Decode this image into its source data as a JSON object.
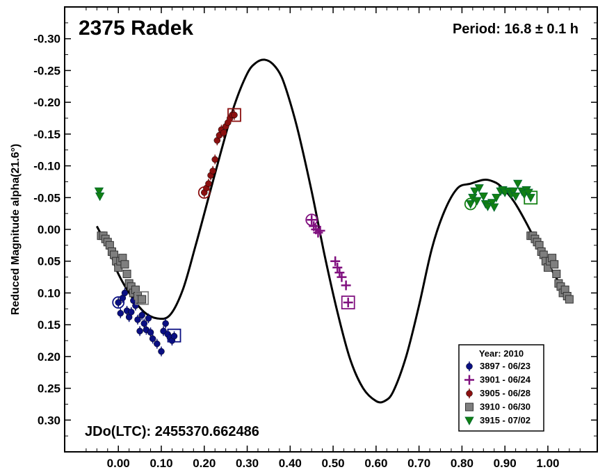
{
  "chart_data": {
    "type": "scatter",
    "title": "2375 Radek",
    "period_label": "Period: 16.8 ± 0.1 h",
    "footer_label": "JDo(LTC): 2455370.662486",
    "xlabel": "",
    "ylabel": "Reduced Magnitude alpha(21.6°)",
    "xlim": [
      -0.125,
      1.115
    ],
    "ylim": [
      -0.35,
      0.35
    ],
    "y_inverted": true,
    "x_ticks": [
      0.0,
      0.1,
      0.2,
      0.3,
      0.4,
      0.5,
      0.6,
      0.7,
      0.8,
      0.9,
      1.0
    ],
    "x_tick_labels": [
      "0.00",
      "0.10",
      "0.20",
      "0.30",
      "0.40",
      "0.50",
      "0.60",
      "0.70",
      "0.80",
      "0.90",
      "1.00"
    ],
    "y_ticks": [
      -0.3,
      -0.25,
      -0.2,
      -0.15,
      -0.1,
      -0.05,
      0.0,
      0.05,
      0.1,
      0.15,
      0.2,
      0.25,
      0.3
    ],
    "y_tick_labels": [
      "-0.30",
      "-0.25",
      "-0.20",
      "-0.15",
      "-0.10",
      "-0.05",
      "0.00",
      "0.05",
      "0.10",
      "0.15",
      "0.20",
      "0.25",
      "0.30"
    ],
    "legend": {
      "title": "Year: 2010",
      "position": "bottom-right"
    },
    "fit_curve": {
      "name": "Fourier fit",
      "x": [
        -0.05,
        -0.02,
        0.0,
        0.03,
        0.06,
        0.09,
        0.12,
        0.15,
        0.18,
        0.21,
        0.24,
        0.27,
        0.3,
        0.32,
        0.34,
        0.36,
        0.38,
        0.4,
        0.42,
        0.45,
        0.48,
        0.51,
        0.54,
        0.57,
        0.6,
        0.62,
        0.64,
        0.67,
        0.7,
        0.73,
        0.76,
        0.79,
        0.82,
        0.85,
        0.87,
        0.89,
        0.92,
        0.95,
        0.98,
        1.01,
        1.04,
        1.05
      ],
      "y": [
        -0.005,
        0.035,
        0.07,
        0.105,
        0.13,
        0.14,
        0.135,
        0.095,
        0.025,
        -0.05,
        -0.125,
        -0.195,
        -0.245,
        -0.262,
        -0.267,
        -0.26,
        -0.24,
        -0.2,
        -0.15,
        -0.06,
        0.04,
        0.13,
        0.205,
        0.25,
        0.27,
        0.27,
        0.255,
        0.2,
        0.12,
        0.03,
        -0.03,
        -0.065,
        -0.072,
        -0.078,
        -0.076,
        -0.068,
        -0.045,
        -0.01,
        0.03,
        0.065,
        0.1,
        0.11
      ]
    },
    "series": [
      {
        "name": "3897 - 06/23",
        "marker": "circle",
        "color": "#0a0f82",
        "x": [
          0.0,
          0.005,
          0.01,
          0.015,
          0.02,
          0.025,
          0.03,
          0.035,
          0.04,
          0.045,
          0.05,
          0.055,
          0.06,
          0.065,
          0.07,
          0.075,
          0.08,
          0.09,
          0.1,
          0.105,
          0.11,
          0.115,
          0.12,
          0.125,
          0.13
        ],
        "y": [
          0.115,
          0.132,
          0.108,
          0.1,
          0.128,
          0.138,
          0.13,
          0.112,
          0.12,
          0.142,
          0.16,
          0.135,
          0.148,
          0.158,
          0.14,
          0.162,
          0.172,
          0.18,
          0.192,
          0.16,
          0.148,
          0.165,
          0.17,
          0.175,
          0.168
        ],
        "reference_markers": [
          {
            "x": 0.0,
            "y": 0.115,
            "style": "open-circle"
          },
          {
            "x": 0.13,
            "y": 0.167,
            "style": "open-square"
          }
        ]
      },
      {
        "name": "3901 - 06/24",
        "marker": "plus",
        "color": "#80107f",
        "x": [
          0.45,
          0.455,
          0.46,
          0.465,
          0.47,
          0.505,
          0.51,
          0.515,
          0.52,
          0.53,
          0.535
        ],
        "y": [
          -0.015,
          -0.005,
          0.0,
          0.005,
          0.002,
          0.05,
          0.06,
          0.068,
          0.075,
          0.088,
          0.115
        ],
        "reference_markers": [
          {
            "x": 0.45,
            "y": -0.015,
            "style": "open-circle"
          },
          {
            "x": 0.535,
            "y": 0.115,
            "style": "open-square"
          }
        ]
      },
      {
        "name": "3905 - 06/28",
        "marker": "circle",
        "color": "#8b1010",
        "x": [
          0.2,
          0.205,
          0.21,
          0.215,
          0.22,
          0.225,
          0.23,
          0.235,
          0.24,
          0.245,
          0.25,
          0.255,
          0.26,
          0.265,
          0.27
        ],
        "y": [
          -0.058,
          -0.065,
          -0.072,
          -0.085,
          -0.092,
          -0.11,
          -0.14,
          -0.148,
          -0.157,
          -0.152,
          -0.162,
          -0.168,
          -0.175,
          -0.18,
          -0.18
        ],
        "reference_markers": [
          {
            "x": 0.2,
            "y": -0.058,
            "style": "open-circle"
          },
          {
            "x": 0.27,
            "y": -0.18,
            "style": "open-square"
          }
        ]
      },
      {
        "name": "3910 - 06/30",
        "marker": "square",
        "color": "#7f7f7f",
        "x": [
          -0.04,
          -0.035,
          -0.03,
          -0.025,
          -0.02,
          -0.015,
          -0.01,
          -0.005,
          0.0,
          0.005,
          0.01,
          0.015,
          0.02,
          0.025,
          0.03,
          0.035,
          0.04,
          0.045,
          0.05,
          0.055,
          0.96,
          0.965,
          0.97,
          0.975,
          0.98,
          0.985,
          0.99,
          0.995,
          1.0,
          1.005,
          1.01,
          1.015,
          1.02,
          1.025,
          1.03,
          1.035,
          1.04,
          1.045,
          1.05
        ],
        "y": [
          0.01,
          0.01,
          0.015,
          0.02,
          0.025,
          0.035,
          0.04,
          0.05,
          0.06,
          0.05,
          0.045,
          0.055,
          0.07,
          0.085,
          0.09,
          0.1,
          0.095,
          0.105,
          0.11,
          0.11,
          0.01,
          0.01,
          0.015,
          0.02,
          0.025,
          0.035,
          0.04,
          0.05,
          0.06,
          0.05,
          0.045,
          0.055,
          0.07,
          0.085,
          0.09,
          0.1,
          0.095,
          0.105,
          0.11
        ],
        "reference_markers": [
          {
            "x": 0.055,
            "y": 0.108,
            "style": "open-square"
          }
        ]
      },
      {
        "name": "3915 - 07/02",
        "marker": "triangle-down",
        "color": "#128012",
        "x": [
          -0.045,
          -0.043,
          0.82,
          0.825,
          0.83,
          0.835,
          0.84,
          0.85,
          0.855,
          0.86,
          0.87,
          0.875,
          0.88,
          0.89,
          0.895,
          0.9,
          0.91,
          0.915,
          0.92,
          0.925,
          0.93,
          0.94,
          0.945,
          0.95,
          0.955,
          0.96
        ],
        "y": [
          -0.06,
          -0.052,
          -0.04,
          -0.05,
          -0.06,
          -0.045,
          -0.065,
          -0.052,
          -0.04,
          -0.036,
          -0.042,
          -0.035,
          -0.05,
          -0.06,
          -0.062,
          -0.058,
          -0.06,
          -0.055,
          -0.06,
          -0.052,
          -0.072,
          -0.06,
          -0.055,
          -0.062,
          -0.058,
          -0.05
        ],
        "reference_markers": [
          {
            "x": 0.82,
            "y": -0.04,
            "style": "open-circle"
          },
          {
            "x": 0.96,
            "y": -0.05,
            "style": "open-square"
          }
        ]
      }
    ]
  }
}
